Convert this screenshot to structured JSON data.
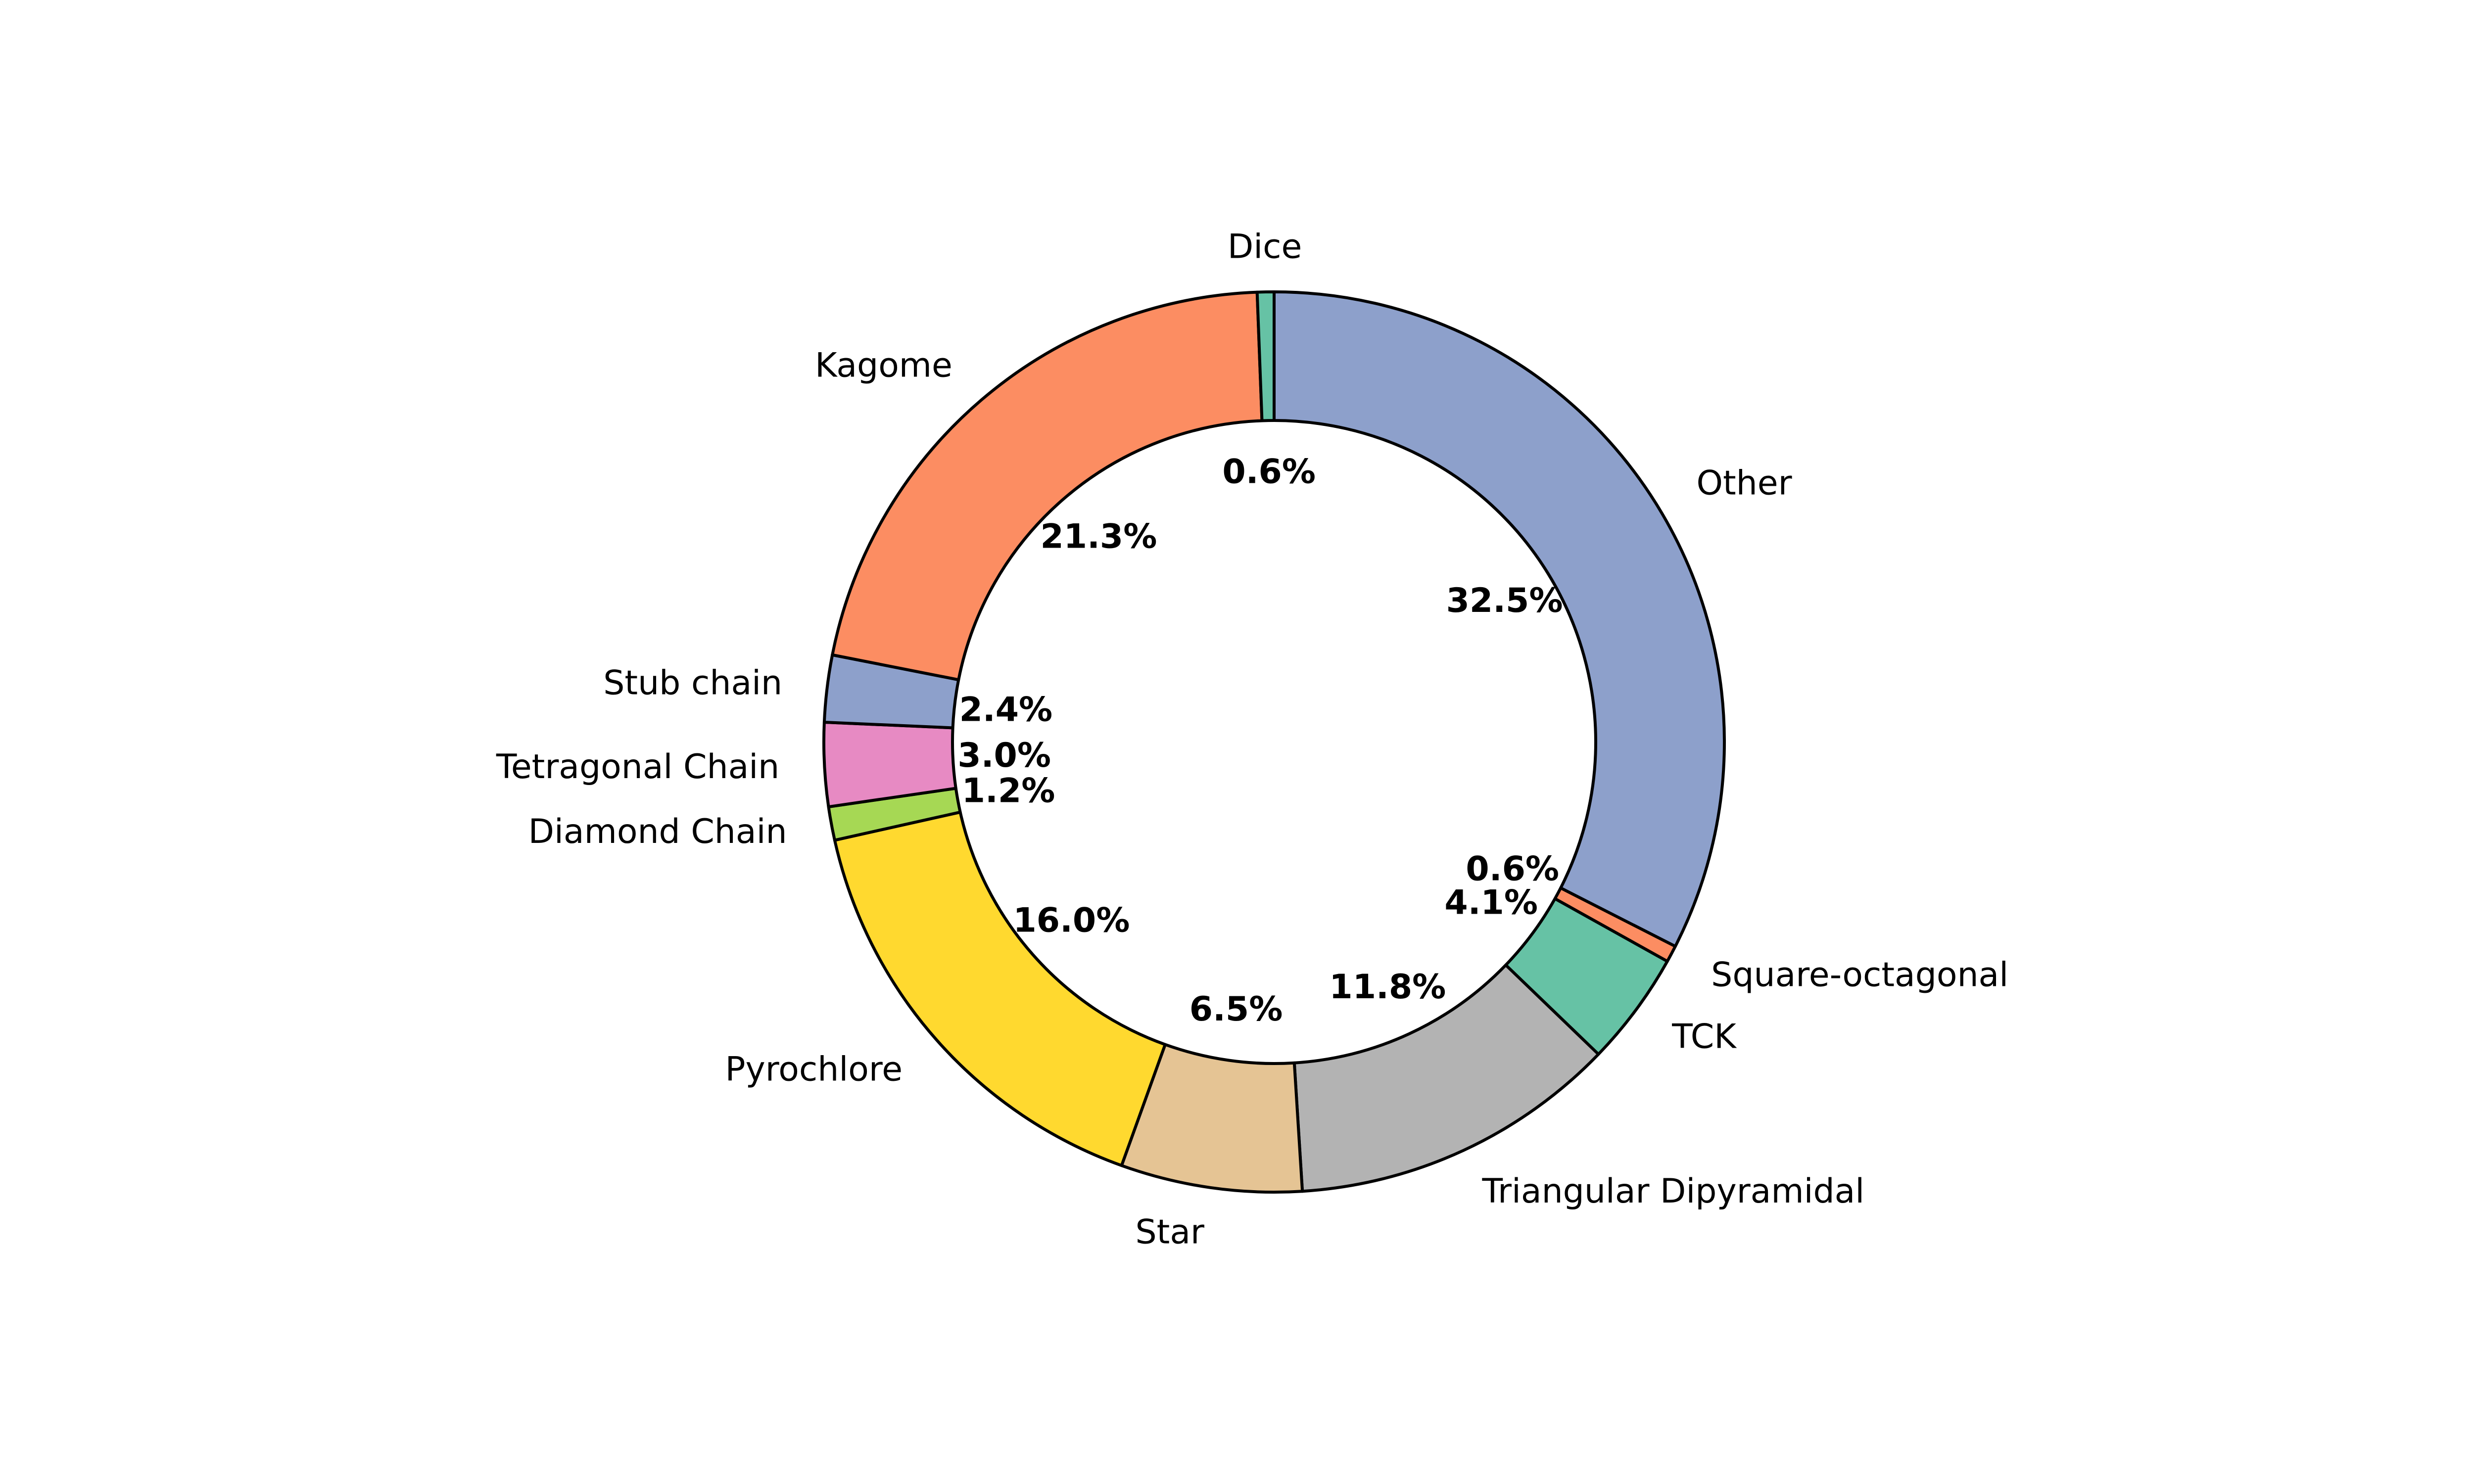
{
  "chart_data": {
    "type": "pie",
    "donut": true,
    "title": "",
    "start_angle_deg": 90,
    "direction": "clockwise",
    "slices": [
      {
        "label": "Other",
        "value": 32.5,
        "pct_text": "32.5%",
        "color": "#8da0cb"
      },
      {
        "label": "Square-octagonal",
        "value": 0.6,
        "pct_text": "0.6%",
        "color": "#fc8d62"
      },
      {
        "label": "TCK",
        "value": 4.1,
        "pct_text": "4.1%",
        "color": "#66c2a5"
      },
      {
        "label": "Triangular Dipyramidal",
        "value": 11.8,
        "pct_text": "11.8%",
        "color": "#b3b3b3"
      },
      {
        "label": "Star",
        "value": 6.5,
        "pct_text": "6.5%",
        "color": "#e5c494"
      },
      {
        "label": "Pyrochlore",
        "value": 16.0,
        "pct_text": "16.0%",
        "color": "#ffd92f"
      },
      {
        "label": "Diamond Chain",
        "value": 1.2,
        "pct_text": "1.2%",
        "color": "#a6d854"
      },
      {
        "label": "Tetragonal Chain",
        "value": 3.0,
        "pct_text": "3.0%",
        "color": "#e78ac3"
      },
      {
        "label": "Stub chain",
        "value": 2.4,
        "pct_text": "2.4%",
        "color": "#8da0cb"
      },
      {
        "label": "Kagome",
        "value": 21.3,
        "pct_text": "21.3%",
        "color": "#fc8d62"
      },
      {
        "label": "Dice",
        "value": 0.6,
        "pct_text": "0.6%",
        "color": "#66c2a5"
      }
    ]
  }
}
